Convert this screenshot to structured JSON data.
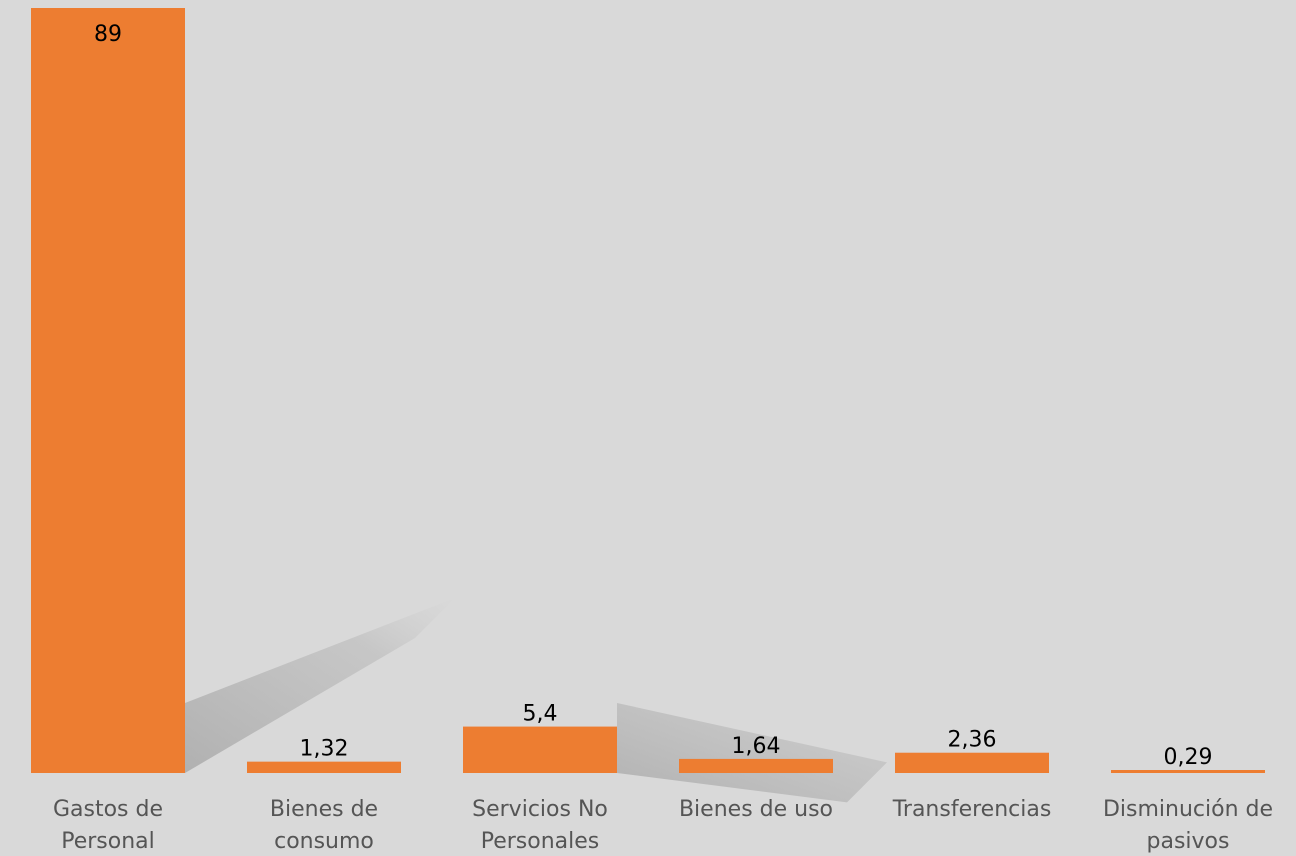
{
  "chart_data": {
    "type": "bar",
    "categories": [
      [
        "Gastos de",
        "Personal"
      ],
      [
        "Bienes de",
        "consumo"
      ],
      [
        "Servicios No",
        "Personales"
      ],
      [
        "Bienes de uso"
      ],
      [
        "Transferencias"
      ],
      [
        "Disminución de",
        "pasivos"
      ]
    ],
    "values": [
      89,
      1.32,
      5.4,
      1.64,
      2.36,
      0.29
    ],
    "data_labels": [
      "89",
      "1,32",
      "5,4",
      "1,64",
      "2,36",
      "0,29"
    ],
    "bar_color": "#ed7d31",
    "background": "#d9d9d9",
    "grid": false,
    "legend": "none"
  }
}
